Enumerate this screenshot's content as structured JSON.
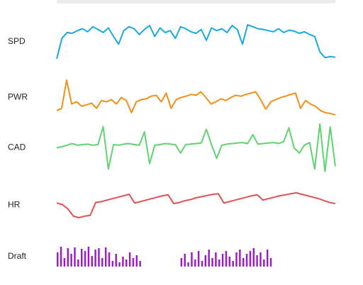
{
  "chart_data": [
    {
      "type": "line",
      "label": "SPD",
      "color": "#17a9e1",
      "values": [
        2,
        55,
        70,
        68,
        75,
        80,
        72,
        85,
        78,
        70,
        82,
        60,
        40,
        75,
        85,
        80,
        65,
        78,
        88,
        60,
        82,
        70,
        75,
        55,
        85,
        80,
        72,
        68,
        78,
        50,
        82,
        75,
        80,
        70,
        88,
        78,
        40,
        90,
        85,
        80,
        78,
        75,
        72,
        80,
        70,
        76,
        74,
        68,
        72,
        65,
        60,
        20,
        5,
        8,
        6
      ]
    },
    {
      "type": "line",
      "label": "PWR",
      "color": "#f0901a",
      "values": [
        25,
        30,
        95,
        40,
        45,
        35,
        38,
        42,
        30,
        48,
        45,
        50,
        40,
        55,
        48,
        20,
        45,
        50,
        52,
        58,
        60,
        45,
        65,
        30,
        50,
        55,
        58,
        62,
        60,
        68,
        55,
        40,
        45,
        52,
        48,
        55,
        60,
        58,
        62,
        65,
        68,
        50,
        28,
        45,
        50,
        55,
        58,
        62,
        65,
        30,
        48,
        40,
        35,
        25,
        20,
        18,
        15
      ]
    },
    {
      "type": "line",
      "label": "CAD",
      "color": "#5fd36e",
      "values": [
        50,
        52,
        55,
        58,
        55,
        56,
        57,
        55,
        56,
        90,
        10,
        56,
        55,
        57,
        58,
        56,
        55,
        80,
        20,
        55,
        56,
        58,
        57,
        56,
        40,
        56,
        57,
        58,
        59,
        85,
        56,
        30,
        55,
        57,
        58,
        59,
        60,
        58,
        75,
        57,
        58,
        59,
        60,
        58,
        62,
        88,
        50,
        40,
        55,
        60,
        10,
        95,
        5,
        90,
        15
      ]
    },
    {
      "type": "line",
      "label": "HR",
      "color": "#e0524f",
      "values": [
        60,
        55,
        40,
        15,
        10,
        15,
        18,
        62,
        65,
        70,
        75,
        80,
        85,
        90,
        60,
        65,
        70,
        75,
        80,
        85,
        88,
        58,
        62,
        68,
        72,
        78,
        82,
        86,
        90,
        92,
        60,
        65,
        70,
        75,
        80,
        85,
        88,
        70,
        75,
        80,
        85,
        88,
        92,
        95,
        90,
        85,
        80,
        75,
        68,
        62,
        58
      ]
    },
    {
      "type": "bar",
      "label": "Draft",
      "color": "#9b19c8",
      "values": [
        20,
        28,
        12,
        26,
        18,
        27,
        10,
        25,
        22,
        28,
        15,
        24,
        26,
        12,
        27,
        20,
        8,
        18,
        6,
        14,
        10,
        20,
        12,
        16,
        8,
        0,
        0,
        0,
        0,
        0,
        0,
        0,
        0,
        0,
        0,
        0,
        12,
        18,
        6,
        20,
        10,
        22,
        8,
        16,
        24,
        12,
        20,
        10,
        18,
        22,
        14,
        8,
        20,
        24,
        12,
        18,
        22,
        26,
        16,
        20,
        10,
        24,
        12,
        0,
        0,
        0,
        0,
        0,
        0,
        0,
        0,
        0,
        0,
        0,
        0,
        0,
        0,
        0,
        0,
        0,
        0
      ]
    }
  ]
}
